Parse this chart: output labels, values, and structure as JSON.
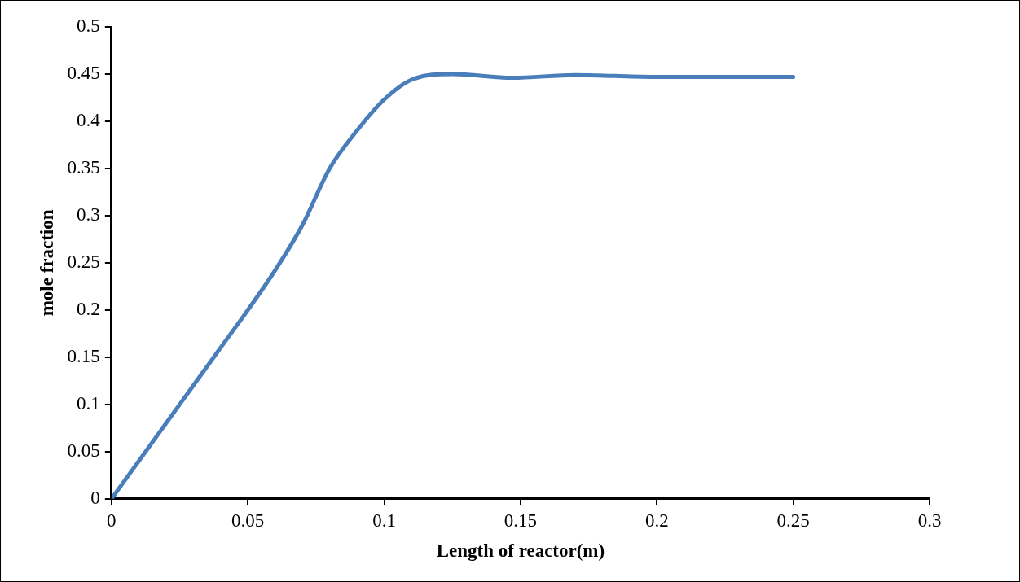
{
  "chart_data": {
    "type": "line",
    "xlabel": "Length of reactor(m)",
    "ylabel": "mole fraction",
    "xlim": [
      0,
      0.3
    ],
    "xticks": [
      0,
      0.05,
      0.1,
      0.15,
      0.2,
      0.25,
      0.3
    ],
    "ylim": [
      0,
      0.5
    ],
    "yticks": [
      0,
      0.05,
      0.1,
      0.15,
      0.2,
      0.25,
      0.3,
      0.35,
      0.4,
      0.45,
      0.5
    ],
    "grid": false,
    "legend": false,
    "marker": "none",
    "line_style": "solid",
    "series": [
      {
        "color": "#4a7ebb",
        "x": [
          0,
          0.01,
          0.025,
          0.04,
          0.05,
          0.06,
          0.07,
          0.08,
          0.09,
          0.1,
          0.11,
          0.125,
          0.147,
          0.17,
          0.2,
          0.25
        ],
        "values": [
          0,
          0.04,
          0.1,
          0.16,
          0.2,
          0.242,
          0.29,
          0.35,
          0.39,
          0.423,
          0.444,
          0.45,
          0.446,
          0.449,
          0.447,
          0.447
        ]
      }
    ]
  }
}
